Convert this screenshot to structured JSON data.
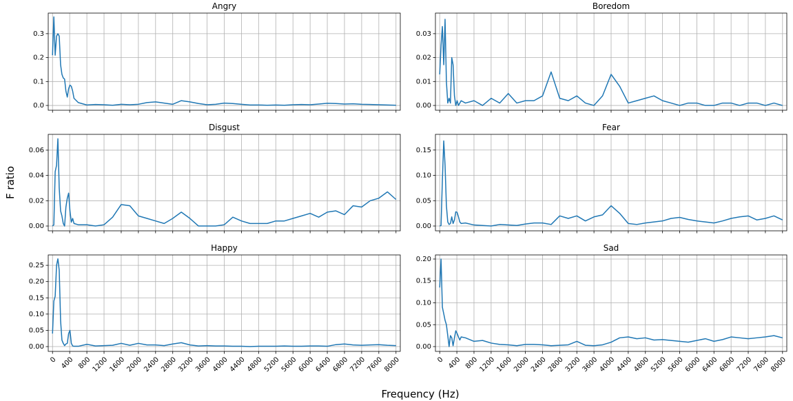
{
  "ylabel": "F ratio",
  "xlabel": "Frequency (Hz)",
  "chart_data": [
    {
      "type": "line",
      "title": "Angry",
      "color": "#1f77b4",
      "grid": true,
      "x": [
        0,
        31,
        62,
        94,
        125,
        156,
        188,
        219,
        250,
        281,
        312,
        344,
        375,
        406,
        438,
        469,
        500,
        600,
        800,
        1000,
        1200,
        1400,
        1600,
        1800,
        2000,
        2200,
        2400,
        2600,
        2800,
        3000,
        3200,
        3400,
        3600,
        3800,
        4000,
        4200,
        4400,
        4600,
        4800,
        5000,
        5200,
        5400,
        5600,
        5800,
        6000,
        6200,
        6400,
        6600,
        6800,
        7000,
        7200,
        7400,
        7600,
        7800,
        8000
      ],
      "values": [
        0.21,
        0.37,
        0.21,
        0.29,
        0.3,
        0.29,
        0.17,
        0.13,
        0.115,
        0.11,
        0.06,
        0.035,
        0.07,
        0.085,
        0.08,
        0.06,
        0.03,
        0.012,
        0.002,
        0.004,
        0.003,
        0.001,
        0.005,
        0.003,
        0.005,
        0.012,
        0.015,
        0.01,
        0.005,
        0.02,
        0.015,
        0.008,
        0.003,
        0.005,
        0.01,
        0.008,
        0.005,
        0.002,
        0.002,
        0.001,
        0.002,
        0.001,
        0.003,
        0.004,
        0.003,
        0.006,
        0.009,
        0.008,
        0.006,
        0.007,
        0.005,
        0.004,
        0.003,
        0.002,
        0.001
      ],
      "xlim": [
        -100,
        8100
      ],
      "ylim": [
        -0.02,
        0.386
      ],
      "xticks": [
        0,
        400,
        800,
        1200,
        1600,
        2000,
        2400,
        2800,
        3200,
        3600,
        4000,
        4400,
        4800,
        5200,
        5600,
        6000,
        6400,
        6800,
        7200,
        7600,
        8000
      ],
      "yticks": [
        {
          "value": 0,
          "label": "0.0"
        },
        0.1,
        0.2,
        0.3
      ]
    },
    {
      "type": "line",
      "title": "Boredom",
      "color": "#1f77b4",
      "grid": true,
      "x": [
        0,
        31,
        62,
        94,
        125,
        156,
        188,
        219,
        250,
        281,
        312,
        344,
        375,
        406,
        438,
        469,
        500,
        600,
        800,
        1000,
        1200,
        1400,
        1600,
        1800,
        2000,
        2200,
        2400,
        2600,
        2800,
        3000,
        3200,
        3400,
        3600,
        3800,
        4000,
        4200,
        4400,
        4600,
        4800,
        5000,
        5200,
        5400,
        5600,
        5800,
        6000,
        6200,
        6400,
        6600,
        6800,
        7000,
        7200,
        7400,
        7600,
        7800,
        8000
      ],
      "values": [
        0.013,
        0.025,
        0.033,
        0.017,
        0.036,
        0.01,
        0.001,
        0.003,
        0.001,
        0.02,
        0.017,
        0.004,
        0.0,
        0.002,
        0.0,
        0.001,
        0.002,
        0.001,
        0.002,
        0.0,
        0.003,
        0.001,
        0.005,
        0.001,
        0.002,
        0.002,
        0.004,
        0.014,
        0.003,
        0.002,
        0.004,
        0.001,
        0.0,
        0.004,
        0.013,
        0.008,
        0.001,
        0.002,
        0.003,
        0.004,
        0.002,
        0.001,
        0.0,
        0.001,
        0.001,
        0.0,
        0.0,
        0.001,
        0.001,
        0.0,
        0.001,
        0.001,
        0.0,
        0.001,
        0.0
      ],
      "xlim": [
        -100,
        8100
      ],
      "ylim": [
        -0.002,
        0.0386
      ],
      "xticks": [
        0,
        400,
        800,
        1200,
        1600,
        2000,
        2400,
        2800,
        3200,
        3600,
        4000,
        4400,
        4800,
        5200,
        5600,
        6000,
        6400,
        6800,
        7200,
        7600,
        8000
      ],
      "yticks": [
        {
          "value": 0,
          "label": "0.00"
        },
        0.01,
        0.02,
        0.03
      ]
    },
    {
      "type": "line",
      "title": "Disgust",
      "color": "#1f77b4",
      "grid": true,
      "x": [
        0,
        31,
        62,
        94,
        125,
        156,
        188,
        219,
        250,
        281,
        312,
        344,
        375,
        406,
        438,
        469,
        500,
        600,
        800,
        1000,
        1200,
        1400,
        1600,
        1800,
        2000,
        2200,
        2400,
        2600,
        2800,
        3000,
        3200,
        3400,
        3600,
        3800,
        4000,
        4200,
        4400,
        4600,
        4800,
        5000,
        5200,
        5400,
        5600,
        5800,
        6000,
        6200,
        6400,
        6600,
        6800,
        7000,
        7200,
        7400,
        7600,
        7800,
        8000
      ],
      "values": [
        0.0,
        0.001,
        0.043,
        0.048,
        0.069,
        0.03,
        0.012,
        0.008,
        0.002,
        0.0,
        0.015,
        0.022,
        0.026,
        0.012,
        0.003,
        0.006,
        0.002,
        0.001,
        0.001,
        0.0,
        0.001,
        0.007,
        0.017,
        0.016,
        0.008,
        0.006,
        0.004,
        0.002,
        0.006,
        0.011,
        0.006,
        0.0,
        0.0,
        0.0,
        0.001,
        0.007,
        0.004,
        0.002,
        0.002,
        0.002,
        0.004,
        0.004,
        0.006,
        0.008,
        0.01,
        0.007,
        0.011,
        0.012,
        0.009,
        0.016,
        0.015,
        0.02,
        0.022,
        0.027,
        0.021
      ],
      "xlim": [
        -100,
        8100
      ],
      "ylim": [
        -0.0038,
        0.0725
      ],
      "xticks": [
        0,
        400,
        800,
        1200,
        1600,
        2000,
        2400,
        2800,
        3200,
        3600,
        4000,
        4400,
        4800,
        5200,
        5600,
        6000,
        6400,
        6800,
        7200,
        7600,
        8000
      ],
      "yticks": [
        {
          "value": 0,
          "label": "0.00"
        },
        0.02,
        0.04,
        0.06
      ]
    },
    {
      "type": "line",
      "title": "Fear",
      "color": "#1f77b4",
      "grid": true,
      "x": [
        0,
        31,
        62,
        94,
        125,
        156,
        188,
        219,
        250,
        281,
        312,
        344,
        375,
        406,
        438,
        469,
        500,
        600,
        800,
        1000,
        1200,
        1400,
        1600,
        1800,
        2000,
        2200,
        2400,
        2600,
        2800,
        3000,
        3200,
        3400,
        3600,
        3800,
        4000,
        4200,
        4400,
        4600,
        4800,
        5000,
        5200,
        5400,
        5600,
        5800,
        6000,
        6200,
        6400,
        6600,
        6800,
        7000,
        7200,
        7400,
        7600,
        7800,
        8000
      ],
      "values": [
        0.0,
        0.001,
        0.09,
        0.168,
        0.12,
        0.04,
        0.008,
        0.003,
        0.005,
        0.018,
        0.005,
        0.012,
        0.028,
        0.027,
        0.018,
        0.008,
        0.005,
        0.006,
        0.002,
        0.001,
        0.0,
        0.003,
        0.002,
        0.001,
        0.004,
        0.006,
        0.006,
        0.003,
        0.02,
        0.015,
        0.02,
        0.01,
        0.018,
        0.022,
        0.04,
        0.025,
        0.005,
        0.003,
        0.006,
        0.008,
        0.01,
        0.015,
        0.017,
        0.013,
        0.01,
        0.008,
        0.006,
        0.01,
        0.015,
        0.018,
        0.02,
        0.012,
        0.015,
        0.02,
        0.012
      ],
      "xlim": [
        -100,
        8100
      ],
      "ylim": [
        -0.0095,
        0.181
      ],
      "xticks": [
        0,
        400,
        800,
        1200,
        1600,
        2000,
        2400,
        2800,
        3200,
        3600,
        4000,
        4400,
        4800,
        5200,
        5600,
        6000,
        6400,
        6800,
        7200,
        7600,
        8000
      ],
      "yticks": [
        {
          "value": 0,
          "label": "0.00"
        },
        0.05,
        {
          "value": 0.1,
          "label": "0.10"
        },
        0.15
      ]
    },
    {
      "type": "line",
      "title": "Happy",
      "color": "#1f77b4",
      "grid": true,
      "x": [
        0,
        31,
        62,
        94,
        125,
        156,
        188,
        219,
        250,
        281,
        312,
        344,
        375,
        406,
        438,
        469,
        500,
        600,
        800,
        1000,
        1200,
        1400,
        1600,
        1800,
        2000,
        2200,
        2400,
        2600,
        2800,
        3000,
        3200,
        3400,
        3600,
        3800,
        4000,
        4200,
        4400,
        4600,
        4800,
        5000,
        5200,
        5400,
        5600,
        5800,
        6000,
        6200,
        6400,
        6600,
        6800,
        7000,
        7200,
        7400,
        7600,
        7800,
        8000
      ],
      "values": [
        0.04,
        0.14,
        0.155,
        0.25,
        0.27,
        0.235,
        0.08,
        0.02,
        0.01,
        0.003,
        0.008,
        0.01,
        0.04,
        0.05,
        0.01,
        0.002,
        0.001,
        0.001,
        0.007,
        0.002,
        0.003,
        0.004,
        0.01,
        0.004,
        0.01,
        0.005,
        0.005,
        0.003,
        0.008,
        0.012,
        0.005,
        0.002,
        0.003,
        0.002,
        0.002,
        0.001,
        0.001,
        0.0,
        0.001,
        0.001,
        0.001,
        0.002,
        0.001,
        0.001,
        0.002,
        0.002,
        0.001,
        0.006,
        0.008,
        0.005,
        0.004,
        0.005,
        0.006,
        0.004,
        0.003
      ],
      "xlim": [
        -100,
        8100
      ],
      "ylim": [
        -0.0148,
        0.282
      ],
      "xticks": [
        0,
        400,
        800,
        1200,
        1600,
        2000,
        2400,
        2800,
        3200,
        3600,
        4000,
        4400,
        4800,
        5200,
        5600,
        6000,
        6400,
        6800,
        7200,
        7600,
        8000
      ],
      "yticks": [
        {
          "value": 0,
          "label": "0.00"
        },
        0.05,
        {
          "value": 0.1,
          "label": "0.10"
        },
        0.15,
        {
          "value": 0.2,
          "label": "0.20"
        },
        0.25
      ]
    },
    {
      "type": "line",
      "title": "Sad",
      "color": "#1f77b4",
      "grid": true,
      "x": [
        0,
        31,
        62,
        94,
        125,
        156,
        188,
        219,
        250,
        281,
        312,
        344,
        375,
        406,
        438,
        469,
        500,
        600,
        800,
        1000,
        1200,
        1400,
        1600,
        1800,
        2000,
        2200,
        2400,
        2600,
        2800,
        3000,
        3200,
        3400,
        3600,
        3800,
        4000,
        4200,
        4400,
        4600,
        4800,
        5000,
        5200,
        5400,
        5600,
        5800,
        6000,
        6200,
        6400,
        6600,
        6800,
        7000,
        7200,
        7400,
        7600,
        7800,
        8000
      ],
      "values": [
        0.135,
        0.2,
        0.09,
        0.075,
        0.06,
        0.05,
        0.025,
        0.0,
        0.025,
        0.02,
        0.002,
        0.02,
        0.036,
        0.03,
        0.022,
        0.015,
        0.022,
        0.02,
        0.012,
        0.014,
        0.008,
        0.005,
        0.004,
        0.002,
        0.005,
        0.005,
        0.004,
        0.002,
        0.003,
        0.004,
        0.012,
        0.003,
        0.002,
        0.004,
        0.01,
        0.02,
        0.022,
        0.018,
        0.02,
        0.015,
        0.016,
        0.014,
        0.012,
        0.01,
        0.014,
        0.018,
        0.012,
        0.016,
        0.022,
        0.02,
        0.018,
        0.02,
        0.022,
        0.025,
        0.02
      ],
      "xlim": [
        -100,
        8100
      ],
      "ylim": [
        -0.011,
        0.2094
      ],
      "xticks": [
        0,
        400,
        800,
        1200,
        1600,
        2000,
        2400,
        2800,
        3200,
        3600,
        4000,
        4400,
        4800,
        5200,
        5600,
        6000,
        6400,
        6800,
        7200,
        7600,
        8000
      ],
      "yticks": [
        {
          "value": 0,
          "label": "0.00"
        },
        0.05,
        {
          "value": 0.1,
          "label": "0.10"
        },
        0.15,
        {
          "value": 0.2,
          "label": "0.20"
        }
      ]
    }
  ]
}
